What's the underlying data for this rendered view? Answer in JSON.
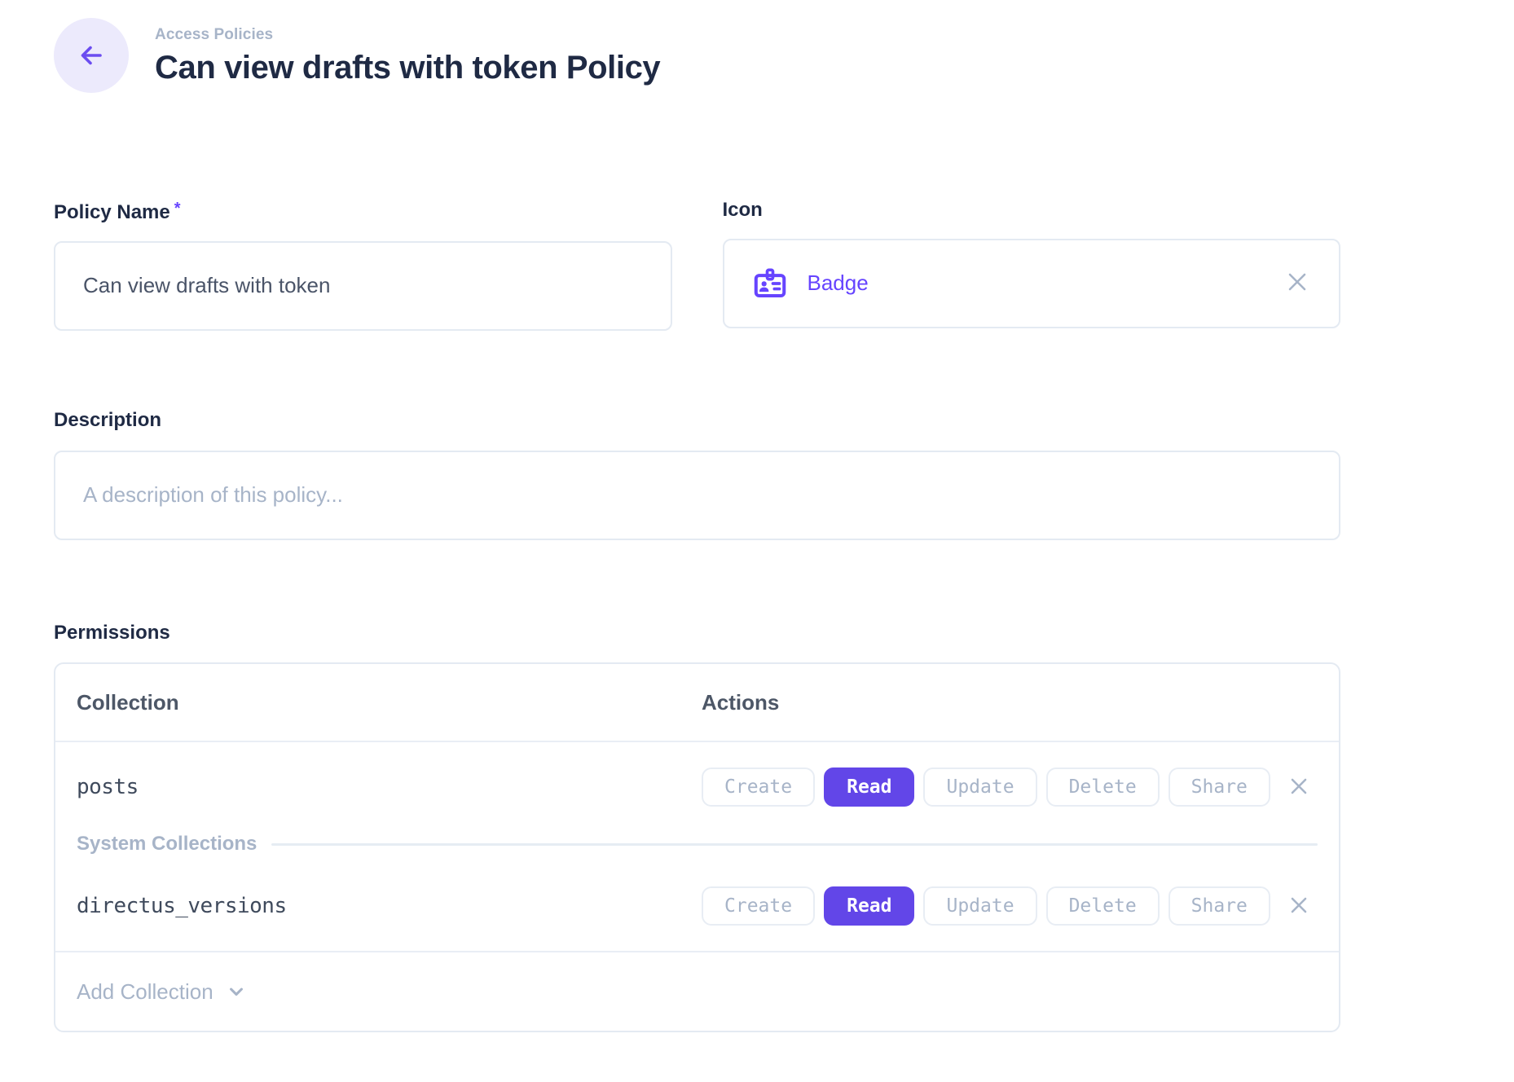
{
  "colors": {
    "accent": "#6644ff",
    "accent_button": "#6246e8",
    "accent_soft_bg": "#eceafc",
    "heading_text": "#1f2a44",
    "muted_text": "#a7b4c8",
    "border": "#e4eaf2"
  },
  "header": {
    "breadcrumb": "Access Policies",
    "title": "Can view drafts with token Policy",
    "back_icon": "arrow-left-icon"
  },
  "fields": {
    "policy_name": {
      "label": "Policy Name",
      "required_marker": "*",
      "value": "Can view drafts with token"
    },
    "icon": {
      "label": "Icon",
      "value": "Badge",
      "icon": "badge-icon",
      "clear_icon": "close-icon"
    },
    "description": {
      "label": "Description",
      "value": "",
      "placeholder": "A description of this policy..."
    }
  },
  "permissions": {
    "label": "Permissions",
    "columns": {
      "collection": "Collection",
      "actions": "Actions"
    },
    "action_labels": [
      "Create",
      "Read",
      "Update",
      "Delete",
      "Share"
    ],
    "items": [
      {
        "type": "collection",
        "collection": "posts",
        "active_actions": [
          "Read"
        ]
      },
      {
        "type": "divider",
        "label": "System Collections"
      },
      {
        "type": "collection",
        "collection": "directus_versions",
        "active_actions": [
          "Read"
        ]
      }
    ],
    "add_label": "Add Collection",
    "add_icon": "chevron-down-icon",
    "remove_icon": "close-icon"
  }
}
